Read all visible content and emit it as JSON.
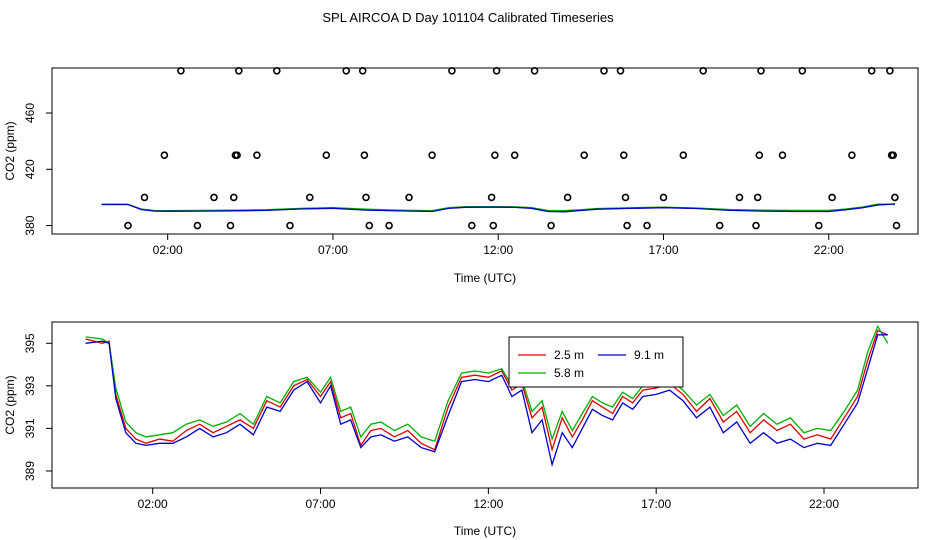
{
  "title": "SPL AIRCOA D  Day 101104  Calibrated Timeseries",
  "colors": {
    "2.5 m": "#e00000",
    "5.8 m": "#00b000",
    "9.1 m": "#0000cc"
  },
  "chart_data": [
    {
      "type": "scatter_line",
      "xlabel": "Time (UTC)",
      "ylabel": "CO2 (ppm)",
      "x_unit": "hours UTC",
      "xlim": [
        -1.5,
        24.7
      ],
      "ylim": [
        374,
        492
      ],
      "x_ticks": [
        2,
        7,
        12,
        17,
        22
      ],
      "x_tick_labels": [
        "02:00",
        "07:00",
        "12:00",
        "17:00",
        "22:00"
      ],
      "y_ticks": [
        380,
        420,
        460
      ],
      "y_tick_labels": [
        "380",
        "420",
        "460"
      ],
      "grid": false,
      "points": [
        [
          0.8,
          380
        ],
        [
          1.3,
          400
        ],
        [
          1.9,
          430
        ],
        [
          2.4,
          490
        ],
        [
          2.9,
          380
        ],
        [
          3.4,
          400
        ],
        [
          3.9,
          380
        ],
        [
          4.0,
          400
        ],
        [
          4.05,
          430
        ],
        [
          4.1,
          430
        ],
        [
          4.15,
          490
        ],
        [
          4.7,
          430
        ],
        [
          5.3,
          490
        ],
        [
          5.7,
          380
        ],
        [
          6.3,
          400
        ],
        [
          6.8,
          430
        ],
        [
          7.4,
          490
        ],
        [
          7.9,
          490
        ],
        [
          7.95,
          430
        ],
        [
          8.0,
          400
        ],
        [
          8.1,
          380
        ],
        [
          8.7,
          380
        ],
        [
          9.3,
          400
        ],
        [
          10.0,
          430
        ],
        [
          10.6,
          490
        ],
        [
          11.2,
          380
        ],
        [
          11.8,
          400
        ],
        [
          11.85,
          380
        ],
        [
          11.9,
          430
        ],
        [
          11.95,
          490
        ],
        [
          12.5,
          430
        ],
        [
          13.1,
          490
        ],
        [
          13.6,
          380
        ],
        [
          14.1,
          400
        ],
        [
          14.6,
          430
        ],
        [
          15.2,
          490
        ],
        [
          15.7,
          490
        ],
        [
          15.8,
          430
        ],
        [
          15.85,
          400
        ],
        [
          15.9,
          380
        ],
        [
          16.5,
          380
        ],
        [
          17.0,
          400
        ],
        [
          17.6,
          430
        ],
        [
          18.2,
          490
        ],
        [
          18.7,
          380
        ],
        [
          19.3,
          400
        ],
        [
          19.8,
          380
        ],
        [
          19.85,
          400
        ],
        [
          19.9,
          430
        ],
        [
          19.95,
          490
        ],
        [
          20.6,
          430
        ],
        [
          21.2,
          490
        ],
        [
          21.7,
          380
        ],
        [
          22.1,
          400
        ],
        [
          22.7,
          430
        ],
        [
          23.3,
          490
        ],
        [
          23.85,
          490
        ],
        [
          23.9,
          430
        ],
        [
          23.95,
          430
        ],
        [
          24.0,
          400
        ],
        [
          24.05,
          380
        ]
      ],
      "series": [
        {
          "name": "2.5 m",
          "x": [
            0,
            0.8,
            1.2,
            1.6,
            2,
            3,
            4,
            5,
            6,
            7,
            8,
            9,
            10,
            10.5,
            11,
            12,
            12.5,
            13,
            13.5,
            14,
            14.5,
            15,
            16,
            17,
            18,
            19,
            20,
            21,
            22,
            22.5,
            23,
            23.5,
            24
          ],
          "values": [
            395,
            395,
            391.5,
            390.4,
            390.3,
            390.4,
            390.6,
            391.0,
            392.0,
            392.5,
            391.3,
            390.7,
            390.3,
            392.5,
            393.2,
            393.3,
            393.1,
            392.6,
            390.5,
            390.4,
            391.0,
            391.8,
            392.4,
            392.9,
            392.3,
            391.1,
            390.6,
            390.5,
            390.5,
            391.5,
            392.8,
            394.8,
            395.3
          ]
        },
        {
          "name": "5.8 m",
          "x": [
            0,
            0.8,
            1.2,
            1.6,
            2,
            3,
            4,
            5,
            6,
            7,
            8,
            9,
            10,
            10.5,
            11,
            12,
            12.5,
            13,
            13.5,
            14,
            14.5,
            15,
            16,
            17,
            18,
            19,
            20,
            21,
            22,
            22.5,
            23,
            23.5,
            24
          ],
          "values": [
            395.2,
            395.1,
            391.8,
            390.7,
            390.6,
            390.8,
            391.0,
            391.3,
            392.2,
            392.7,
            391.6,
            391.0,
            390.6,
            392.8,
            393.4,
            393.5,
            393.3,
            392.8,
            390.8,
            390.7,
            391.3,
            392.1,
            392.6,
            393.1,
            392.5,
            391.4,
            390.9,
            390.8,
            390.8,
            391.8,
            393.1,
            395.3,
            394.9
          ]
        },
        {
          "name": "9.1 m",
          "x": [
            0,
            0.8,
            1.2,
            1.6,
            2,
            3,
            4,
            5,
            6,
            7,
            8,
            9,
            10,
            10.5,
            11,
            12,
            12.5,
            13,
            13.5,
            14,
            14.5,
            15,
            16,
            17,
            18,
            19,
            20,
            21,
            22,
            22.5,
            23,
            23.5,
            24
          ],
          "values": [
            395,
            395,
            391.4,
            390.3,
            390.2,
            390.3,
            390.5,
            390.8,
            391.8,
            392.3,
            391.0,
            390.4,
            390.0,
            392.2,
            393.0,
            393.1,
            392.9,
            392.3,
            390.0,
            389.8,
            390.7,
            391.6,
            392.2,
            392.7,
            392.1,
            390.8,
            390.3,
            390.0,
            390.0,
            391.2,
            392.6,
            394.6,
            395.4
          ]
        }
      ]
    },
    {
      "type": "line",
      "xlabel": "Time (UTC)",
      "ylabel": "CO2 (ppm)",
      "x_unit": "hours UTC",
      "xlim": [
        -1.0,
        24.8
      ],
      "ylim": [
        388.2,
        396.0
      ],
      "x_ticks": [
        2,
        7,
        12,
        17,
        22
      ],
      "x_tick_labels": [
        "02:00",
        "07:00",
        "12:00",
        "17:00",
        "22:00"
      ],
      "y_ticks": [
        389,
        391,
        393,
        395
      ],
      "y_tick_labels": [
        "389",
        "391",
        "393",
        "395"
      ],
      "grid": false,
      "legend": {
        "placement": "top-center",
        "entries": [
          "2.5 m",
          "9.1 m",
          "5.8 m"
        ]
      },
      "series": [
        {
          "name": "2.5 m",
          "x": [
            0,
            0.5,
            0.7,
            0.9,
            1.2,
            1.5,
            1.8,
            2.2,
            2.6,
            3.0,
            3.4,
            3.8,
            4.2,
            4.6,
            5.0,
            5.4,
            5.8,
            6.2,
            6.6,
            7.0,
            7.3,
            7.6,
            7.9,
            8.2,
            8.5,
            8.8,
            9.2,
            9.6,
            10.0,
            10.4,
            10.8,
            11.2,
            11.6,
            12.0,
            12.4,
            12.7,
            13.0,
            13.3,
            13.6,
            13.9,
            14.2,
            14.5,
            14.8,
            15.1,
            15.4,
            15.7,
            16.0,
            16.3,
            16.6,
            17.0,
            17.4,
            17.8,
            18.2,
            18.6,
            19.0,
            19.4,
            19.8,
            20.2,
            20.6,
            21.0,
            21.4,
            21.8,
            22.2,
            22.6,
            23.0,
            23.3,
            23.6,
            23.9
          ],
          "values": [
            395.2,
            395.0,
            395.1,
            392.6,
            391.0,
            390.5,
            390.3,
            390.5,
            390.4,
            390.9,
            391.2,
            390.8,
            391.1,
            391.4,
            391.0,
            392.3,
            392.0,
            393.0,
            393.3,
            392.5,
            393.2,
            391.5,
            391.7,
            390.2,
            390.9,
            391.0,
            390.6,
            390.9,
            390.3,
            390.0,
            392.0,
            393.4,
            393.5,
            393.4,
            393.7,
            392.8,
            393.1,
            391.5,
            392.0,
            390.0,
            391.5,
            390.6,
            391.4,
            392.3,
            392.0,
            391.7,
            392.5,
            392.2,
            392.8,
            392.9,
            393.1,
            392.6,
            391.8,
            392.4,
            391.3,
            391.8,
            390.8,
            391.4,
            390.9,
            391.2,
            390.5,
            390.7,
            390.5,
            391.5,
            392.5,
            394.2,
            395.6,
            395.4
          ]
        },
        {
          "name": "5.8 m",
          "x": [
            0,
            0.5,
            0.7,
            0.9,
            1.2,
            1.5,
            1.8,
            2.2,
            2.6,
            3.0,
            3.4,
            3.8,
            4.2,
            4.6,
            5.0,
            5.4,
            5.8,
            6.2,
            6.6,
            7.0,
            7.3,
            7.6,
            7.9,
            8.2,
            8.5,
            8.8,
            9.2,
            9.6,
            10.0,
            10.4,
            10.8,
            11.2,
            11.6,
            12.0,
            12.4,
            12.7,
            13.0,
            13.3,
            13.6,
            13.9,
            14.2,
            14.5,
            14.8,
            15.1,
            15.4,
            15.7,
            16.0,
            16.3,
            16.6,
            17.0,
            17.4,
            17.8,
            18.2,
            18.6,
            19.0,
            19.4,
            19.8,
            20.2,
            20.6,
            21.0,
            21.4,
            21.8,
            22.2,
            22.6,
            23.0,
            23.3,
            23.6,
            23.9
          ],
          "values": [
            395.3,
            395.2,
            395.0,
            392.9,
            391.3,
            390.8,
            390.6,
            390.7,
            390.8,
            391.2,
            391.4,
            391.1,
            391.3,
            391.7,
            391.2,
            392.5,
            392.2,
            393.2,
            393.4,
            392.7,
            393.4,
            391.8,
            392.0,
            390.6,
            391.2,
            391.3,
            390.9,
            391.2,
            390.6,
            390.4,
            392.3,
            393.6,
            393.7,
            393.6,
            393.8,
            393.0,
            393.3,
            391.8,
            392.3,
            390.5,
            391.8,
            390.9,
            391.7,
            392.5,
            392.2,
            392.0,
            392.7,
            392.4,
            393.0,
            393.1,
            393.3,
            392.8,
            392.1,
            392.6,
            391.6,
            392.1,
            391.1,
            391.7,
            391.2,
            391.5,
            390.8,
            391.0,
            390.9,
            391.8,
            392.8,
            394.6,
            395.8,
            395.0
          ]
        },
        {
          "name": "9.1 m",
          "x": [
            0,
            0.5,
            0.7,
            0.9,
            1.2,
            1.5,
            1.8,
            2.2,
            2.6,
            3.0,
            3.4,
            3.8,
            4.2,
            4.6,
            5.0,
            5.4,
            5.8,
            6.2,
            6.6,
            7.0,
            7.3,
            7.6,
            7.9,
            8.2,
            8.5,
            8.8,
            9.2,
            9.6,
            10.0,
            10.4,
            10.8,
            11.2,
            11.6,
            12.0,
            12.4,
            12.7,
            13.0,
            13.3,
            13.6,
            13.9,
            14.2,
            14.5,
            14.8,
            15.1,
            15.4,
            15.7,
            16.0,
            16.3,
            16.6,
            17.0,
            17.4,
            17.8,
            18.2,
            18.6,
            19.0,
            19.4,
            19.8,
            20.2,
            20.6,
            21.0,
            21.4,
            21.8,
            22.2,
            22.6,
            23.0,
            23.3,
            23.6,
            23.9
          ],
          "values": [
            395.0,
            395.1,
            395.0,
            392.4,
            390.8,
            390.3,
            390.2,
            390.3,
            390.3,
            390.6,
            391.0,
            390.6,
            390.8,
            391.2,
            390.7,
            392.0,
            391.8,
            392.8,
            393.2,
            392.2,
            393.0,
            391.2,
            391.4,
            390.1,
            390.6,
            390.7,
            390.4,
            390.6,
            390.1,
            389.9,
            391.6,
            393.2,
            393.3,
            393.2,
            393.5,
            392.5,
            392.8,
            390.8,
            391.4,
            389.3,
            390.8,
            390.1,
            391.0,
            391.9,
            391.6,
            391.4,
            392.2,
            391.9,
            392.5,
            392.6,
            392.8,
            392.3,
            391.5,
            392.0,
            390.8,
            391.3,
            390.3,
            390.8,
            390.3,
            390.5,
            390.1,
            390.3,
            390.2,
            391.2,
            392.2,
            393.8,
            395.4,
            395.4
          ]
        }
      ]
    }
  ]
}
